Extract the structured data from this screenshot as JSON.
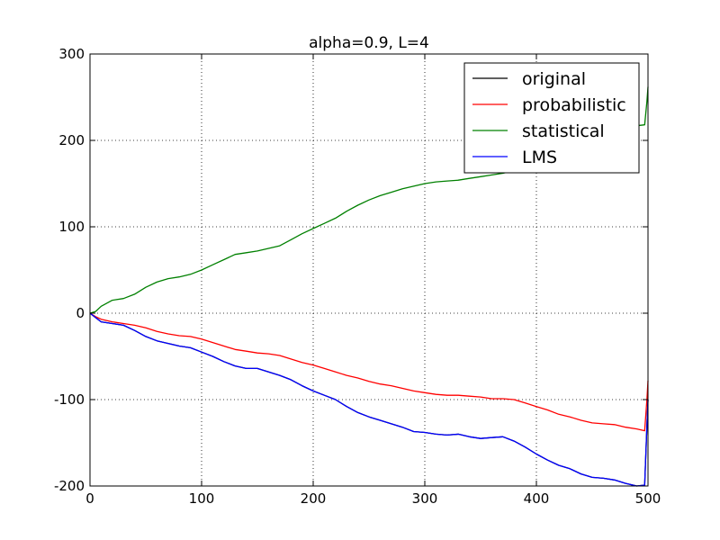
{
  "chart_data": {
    "type": "line",
    "title": "alpha=0.9, L=4",
    "xlabel": "",
    "ylabel": "",
    "xlim": [
      0,
      500
    ],
    "ylim": [
      -200,
      300
    ],
    "xticks": [
      0,
      100,
      200,
      300,
      400,
      500
    ],
    "yticks": [
      -200,
      -100,
      0,
      100,
      200,
      300
    ],
    "grid": true,
    "legend_position": "top-right",
    "series": [
      {
        "name": "original",
        "color": "#000000",
        "x": [
          0,
          5,
          10,
          20,
          30,
          40,
          50,
          60,
          70,
          80,
          90,
          100,
          110,
          120,
          130,
          140,
          150,
          160,
          170,
          180,
          190,
          200,
          210,
          220,
          230,
          240,
          250,
          260,
          270,
          280,
          290,
          300,
          310,
          320,
          330,
          340,
          350,
          360,
          370,
          380,
          390,
          400,
          410,
          420,
          430,
          440,
          450,
          460,
          470,
          480,
          490,
          497,
          499,
          500
        ],
        "y": [
          0,
          -5,
          -10,
          -12,
          -14,
          -20,
          -27,
          -32,
          -35,
          -38,
          -40,
          -45,
          -50,
          -56,
          -61,
          -64,
          -64,
          -68,
          -72,
          -77,
          -84,
          -90,
          -95,
          -100,
          -108,
          -115,
          -120,
          -124,
          -128,
          -132,
          -137,
          -138,
          -140,
          -141,
          -140,
          -143,
          -145,
          -144,
          -143,
          -148,
          -155,
          -163,
          -170,
          -176,
          -180,
          -186,
          -190,
          -191,
          -193,
          -197,
          -200,
          -199,
          -130,
          -100
        ]
      },
      {
        "name": "probabilistic",
        "color": "#ff0000",
        "x": [
          0,
          5,
          10,
          20,
          30,
          40,
          50,
          60,
          70,
          80,
          90,
          100,
          110,
          120,
          130,
          140,
          150,
          160,
          170,
          180,
          190,
          200,
          210,
          220,
          230,
          240,
          250,
          260,
          270,
          280,
          290,
          300,
          310,
          320,
          330,
          340,
          350,
          360,
          370,
          380,
          390,
          400,
          410,
          420,
          430,
          440,
          450,
          460,
          470,
          480,
          490,
          497,
          499,
          500
        ],
        "y": [
          0,
          -4,
          -7,
          -10,
          -12,
          -14,
          -17,
          -21,
          -24,
          -26,
          -27,
          -30,
          -34,
          -38,
          -42,
          -44,
          -46,
          -47,
          -49,
          -53,
          -57,
          -60,
          -64,
          -68,
          -72,
          -75,
          -79,
          -82,
          -84,
          -87,
          -90,
          -92,
          -94,
          -95,
          -95,
          -96,
          -97,
          -99,
          -99,
          -100,
          -104,
          -108,
          -112,
          -117,
          -120,
          -124,
          -127,
          -128,
          -129,
          -132,
          -134,
          -136,
          -100,
          -78
        ]
      },
      {
        "name": "statistical",
        "color": "#008000",
        "x": [
          0,
          5,
          10,
          20,
          30,
          40,
          50,
          60,
          70,
          80,
          90,
          100,
          110,
          120,
          130,
          140,
          150,
          160,
          170,
          180,
          190,
          200,
          210,
          220,
          230,
          240,
          250,
          260,
          270,
          280,
          290,
          300,
          310,
          320,
          330,
          340,
          350,
          360,
          370,
          380,
          390,
          400,
          410,
          420,
          430,
          440,
          450,
          460,
          470,
          480,
          490,
          497,
          499,
          500
        ],
        "y": [
          0,
          2,
          8,
          15,
          17,
          22,
          30,
          36,
          40,
          42,
          45,
          50,
          56,
          62,
          68,
          70,
          72,
          75,
          78,
          85,
          92,
          98,
          104,
          110,
          118,
          125,
          131,
          136,
          140,
          144,
          147,
          150,
          152,
          153,
          154,
          156,
          158,
          160,
          162,
          165,
          170,
          175,
          182,
          188,
          194,
          199,
          204,
          208,
          212,
          215,
          217,
          218,
          245,
          262
        ]
      },
      {
        "name": "LMS",
        "color": "#0000ff",
        "x": [
          0,
          5,
          10,
          20,
          30,
          40,
          50,
          60,
          70,
          80,
          90,
          100,
          110,
          120,
          130,
          140,
          150,
          160,
          170,
          180,
          190,
          200,
          210,
          220,
          230,
          240,
          250,
          260,
          270,
          280,
          290,
          300,
          310,
          320,
          330,
          340,
          350,
          360,
          370,
          380,
          390,
          400,
          410,
          420,
          430,
          440,
          450,
          460,
          470,
          480,
          490,
          497,
          499,
          500
        ],
        "y": [
          0,
          -5,
          -10,
          -12,
          -14,
          -20,
          -27,
          -32,
          -35,
          -38,
          -40,
          -45,
          -50,
          -56,
          -61,
          -64,
          -64,
          -68,
          -72,
          -77,
          -84,
          -90,
          -95,
          -100,
          -108,
          -115,
          -120,
          -124,
          -128,
          -132,
          -137,
          -138,
          -140,
          -141,
          -140,
          -143,
          -145,
          -144,
          -143,
          -148,
          -155,
          -163,
          -170,
          -176,
          -180,
          -186,
          -190,
          -191,
          -193,
          -197,
          -200,
          -199,
          -130,
          -100
        ]
      }
    ]
  }
}
